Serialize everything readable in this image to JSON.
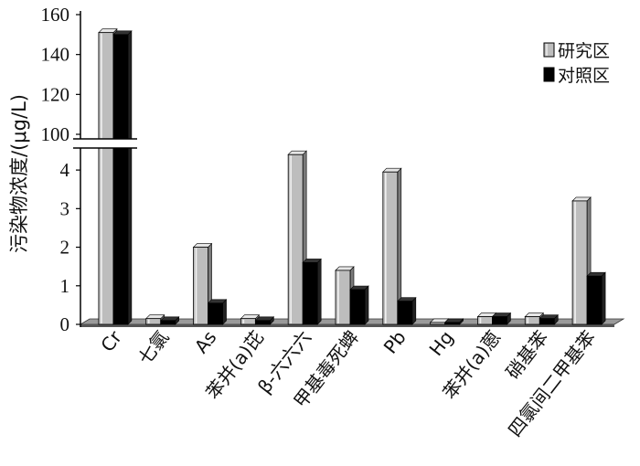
{
  "chart_data": {
    "type": "bar",
    "title": "",
    "xlabel": "",
    "ylabel": "污染物浓度/(μg/L)",
    "axis_break": true,
    "ylim_lower": [
      0,
      4.5
    ],
    "ylim_upper": [
      100,
      160
    ],
    "yticks_lower": [
      "0",
      "1",
      "2",
      "3",
      "4"
    ],
    "yticks_upper": [
      "100",
      "120",
      "140",
      "160"
    ],
    "categories": [
      "Cr",
      "七氯",
      "As",
      "苯并(a)芘",
      "β-六六六",
      "甲基毒死蜱",
      "Pb",
      "Hg",
      "苯并(a)蒽",
      "硝基苯",
      "四氯间二甲基苯"
    ],
    "series": [
      {
        "name": "研究区",
        "color": "#bdbdbd",
        "values": [
          151,
          0.15,
          2.0,
          0.15,
          4.4,
          1.4,
          3.95,
          0.05,
          0.2,
          0.2,
          3.2
        ]
      },
      {
        "name": "对照区",
        "color": "#000000",
        "values": [
          150,
          0.1,
          0.55,
          0.1,
          1.6,
          0.9,
          0.6,
          0.05,
          0.2,
          0.15,
          1.25
        ]
      }
    ],
    "legend": {
      "placement": "top-right"
    },
    "grid": false
  }
}
